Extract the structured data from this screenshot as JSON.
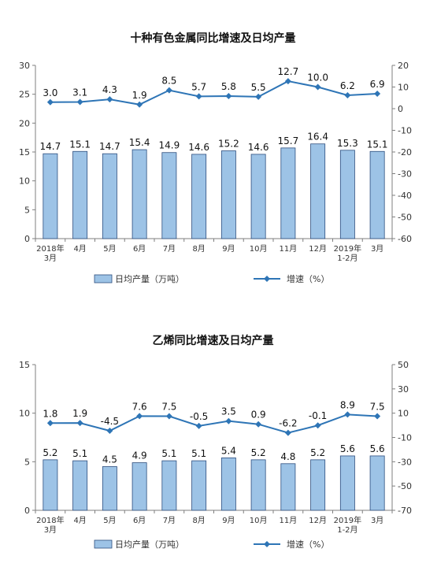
{
  "chart_data": [
    {
      "type": "bar",
      "title": "十种有色金属同比增速及日均产量",
      "categories": [
        "2018年\n3月",
        "4月",
        "5月",
        "6月",
        "7月",
        "8月",
        "9月",
        "10月",
        "11月",
        "12月",
        "2019年\n1-2月",
        "3月"
      ],
      "series": [
        {
          "name": "日均产量（万吨）",
          "type": "bar",
          "axis": "left",
          "values": [
            14.7,
            15.1,
            14.7,
            15.4,
            14.9,
            14.6,
            15.2,
            14.6,
            15.7,
            16.4,
            15.3,
            15.1
          ],
          "labels": [
            "14.7",
            "15.1",
            "14.7",
            "15.4",
            "14.9",
            "14.6",
            "15.2",
            "14.6",
            "15.7",
            "16.4",
            "15.3",
            "15.1"
          ]
        },
        {
          "name": "增速（%）",
          "type": "line",
          "axis": "right",
          "values": [
            3.0,
            3.1,
            4.3,
            1.9,
            8.5,
            5.7,
            5.8,
            5.5,
            12.7,
            10.0,
            6.2,
            6.9
          ],
          "labels": [
            "3.0",
            "3.1",
            "4.3",
            "1.9",
            "8.5",
            "5.7",
            "5.8",
            "5.5",
            "12.7",
            "10.0",
            "6.2",
            "6.9"
          ]
        }
      ],
      "ylim_left": [
        0,
        30
      ],
      "yticks_left": [
        "0",
        "5",
        "10",
        "15",
        "20",
        "25",
        "30"
      ],
      "ylim_right": [
        -60,
        20
      ],
      "yticks_right": [
        "-60",
        "-50",
        "-40",
        "-30",
        "-20",
        "-10",
        "0",
        "10",
        "20"
      ],
      "legend_position": "bottom",
      "grid": false,
      "colors": {
        "bar_fill": "#9DC3E6",
        "bar_stroke": "#2E4E7E",
        "line": "#2E75B6"
      }
    },
    {
      "type": "bar",
      "title": "乙烯同比增速及日均产量",
      "categories": [
        "2018年\n3月",
        "4月",
        "5月",
        "6月",
        "7月",
        "8月",
        "9月",
        "10月",
        "11月",
        "12月",
        "2019年\n1-2月",
        "3月"
      ],
      "series": [
        {
          "name": "日均产量（万吨）",
          "type": "bar",
          "axis": "left",
          "values": [
            5.2,
            5.1,
            4.5,
            4.9,
            5.1,
            5.1,
            5.4,
            5.2,
            4.8,
            5.2,
            5.6,
            5.6
          ],
          "labels": [
            "5.2",
            "5.1",
            "4.5",
            "4.9",
            "5.1",
            "5.1",
            "5.4",
            "5.2",
            "4.8",
            "5.2",
            "5.6",
            "5.6"
          ]
        },
        {
          "name": "增速（%）",
          "type": "line",
          "axis": "right",
          "values": [
            1.8,
            1.9,
            -4.5,
            7.6,
            7.5,
            -0.5,
            3.5,
            0.9,
            -6.2,
            -0.1,
            8.9,
            7.5
          ],
          "labels": [
            "1.8",
            "1.9",
            "-4.5",
            "7.6",
            "7.5",
            "-0.5",
            "3.5",
            "0.9",
            "-6.2",
            "-0.1",
            "8.9",
            "7.5"
          ]
        }
      ],
      "ylim_left": [
        0,
        15
      ],
      "yticks_left": [
        "0",
        "5",
        "10",
        "15"
      ],
      "ylim_right": [
        -70,
        50
      ],
      "yticks_right": [
        "-70",
        "-50",
        "-30",
        "-10",
        "10",
        "30",
        "50"
      ],
      "legend_position": "bottom",
      "grid": false,
      "colors": {
        "bar_fill": "#9DC3E6",
        "bar_stroke": "#2E4E7E",
        "line": "#2E75B6"
      }
    }
  ]
}
